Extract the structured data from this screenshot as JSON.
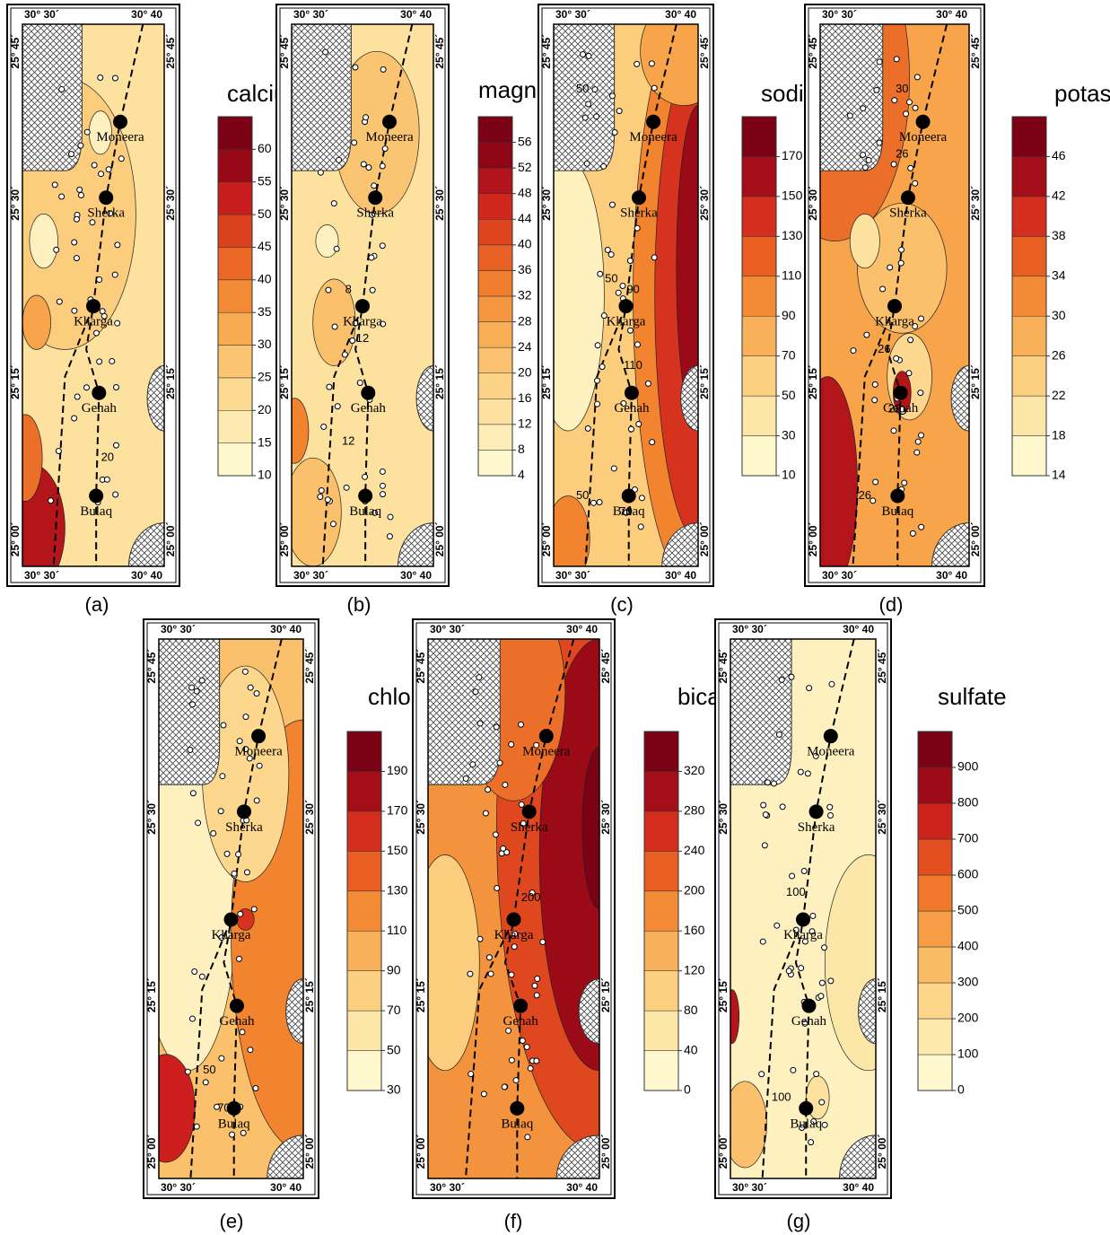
{
  "coordinates": {
    "lon_west": "30° 30´",
    "lon_east": "30° 40",
    "lat": [
      "25° 45´",
      "25° 30´",
      "25° 15´",
      "25° 00´"
    ]
  },
  "towns": [
    "Moneera",
    "Sherka",
    "Kharga",
    "Genah",
    "Bulaq"
  ],
  "colormap": [
    "#fff8cf",
    "#fde6a6",
    "#fbcd7c",
    "#f8ac52",
    "#f2832f",
    "#e4511f",
    "#cc1f1d",
    "#8e0516",
    "#6e0012"
  ],
  "panels": [
    {
      "caption": "(a)",
      "title": "calcium",
      "colorbar_ticks": [
        10,
        15,
        20,
        25,
        30,
        35,
        40,
        45,
        50,
        55,
        60
      ],
      "contour_labels": [
        "20"
      ]
    },
    {
      "caption": "(b)",
      "title": "magnesium",
      "colorbar_ticks": [
        4,
        8,
        12,
        16,
        20,
        24,
        28,
        32,
        36,
        40,
        44,
        48,
        52,
        56
      ],
      "contour_labels": [
        "8",
        "12",
        "12"
      ]
    },
    {
      "caption": "(c)",
      "title": "sodium",
      "colorbar_ticks": [
        10,
        30,
        50,
        70,
        90,
        110,
        130,
        150,
        170
      ],
      "contour_labels": [
        "50",
        "50",
        "90",
        "110",
        "70",
        "50"
      ]
    },
    {
      "caption": "(d)",
      "title": "potassium",
      "colorbar_ticks": [
        14,
        18,
        22,
        26,
        30,
        34,
        38,
        42,
        46
      ],
      "contour_labels": [
        "30",
        "26",
        "26",
        "22",
        "26"
      ]
    },
    {
      "caption": "(e)",
      "title": "chloride",
      "colorbar_ticks": [
        30,
        50,
        70,
        90,
        110,
        130,
        150,
        170,
        190
      ],
      "contour_labels": [
        "50",
        "70"
      ]
    },
    {
      "caption": "(f)",
      "title": "bicarbonate",
      "colorbar_ticks": [
        0,
        40,
        80,
        120,
        160,
        200,
        240,
        280,
        320
      ],
      "contour_labels": [
        "200"
      ]
    },
    {
      "caption": "(g)",
      "title": "sulfate",
      "colorbar_ticks": [
        0,
        100,
        200,
        300,
        400,
        500,
        600,
        700,
        800,
        900
      ],
      "contour_labels": [
        "100",
        "100"
      ]
    }
  ]
}
